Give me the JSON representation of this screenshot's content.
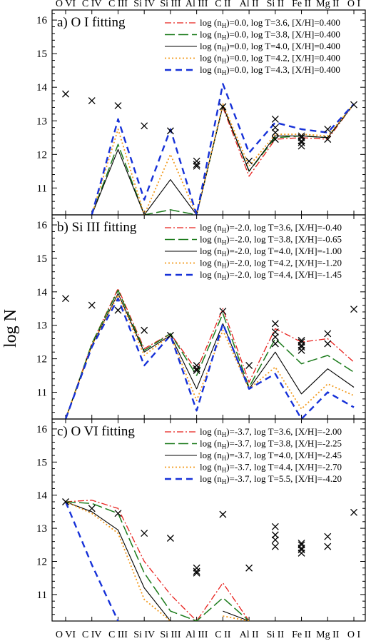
{
  "chart_data": {
    "type": "line",
    "ylabel": "log N",
    "categories": [
      "O VI",
      "C IV",
      "C III",
      "Si IV",
      "Si III",
      "Al III",
      "C II",
      "Al II",
      "Si II",
      "Fe II",
      "Mg II",
      "O I"
    ],
    "ylim": [
      10.2,
      16.3
    ],
    "yticks": [
      11,
      12,
      13,
      14,
      15,
      16
    ],
    "observed": [
      {
        "ion": "O VI",
        "values": [
          13.8
        ]
      },
      {
        "ion": "C IV",
        "values": [
          13.6
        ]
      },
      {
        "ion": "C III",
        "values": [
          13.45
        ]
      },
      {
        "ion": "Si IV",
        "values": [
          12.85
        ]
      },
      {
        "ion": "Si III",
        "values": [
          12.7
        ]
      },
      {
        "ion": "Al III",
        "values": [
          11.8,
          11.7,
          11.65
        ]
      },
      {
        "ion": "C II",
        "values": [
          13.42
        ]
      },
      {
        "ion": "Al II",
        "values": [
          11.8
        ]
      },
      {
        "ion": "Si II",
        "values": [
          13.05,
          12.8,
          12.65,
          12.45
        ]
      },
      {
        "ion": "Fe II",
        "values": [
          12.55,
          12.5,
          12.4,
          12.35,
          12.25
        ]
      },
      {
        "ion": "Mg II",
        "values": [
          12.75,
          12.45
        ]
      },
      {
        "ion": "O I",
        "values": [
          13.48
        ]
      }
    ],
    "panels": [
      {
        "title": "a) O I fitting",
        "series": [
          {
            "name": "log (n_H)=0.0,  log T=3.6,  [X/H]=0.400",
            "color": "#e8201c",
            "style": "dashdot",
            "values": [
              null,
              null,
              null,
              null,
              null,
              null,
              13.4,
              11.35,
              12.45,
              12.5,
              12.45,
              13.5
            ]
          },
          {
            "name": "log (n_H)=0.0,  log T=3.8,  [X/H]=0.400",
            "color": "#1a7a1a",
            "style": "longdash",
            "values": [
              null,
              10.2,
              12.3,
              10.2,
              10.35,
              10.2,
              13.45,
              11.5,
              12.5,
              12.55,
              12.5,
              13.5
            ]
          },
          {
            "name": "log (n_H)=0.0,  log T=4.0,  [X/H]=0.400",
            "color": "#000000",
            "style": "solid",
            "values": [
              null,
              10.2,
              12.15,
              10.2,
              11.25,
              10.2,
              13.45,
              11.5,
              12.55,
              12.55,
              12.5,
              13.5
            ]
          },
          {
            "name": "log (n_H)=0.0,  log T=4.2,  [X/H]=0.400",
            "color": "#f29a1e",
            "style": "dotted",
            "values": [
              null,
              10.2,
              12.75,
              10.2,
              12.0,
              10.2,
              13.5,
              11.65,
              12.6,
              12.6,
              12.55,
              13.5
            ]
          },
          {
            "name": "log (n_H)=0.0,  log T=4.3,  [X/H]=0.400",
            "color": "#1631d8",
            "style": "dash",
            "values": [
              null,
              10.2,
              13.05,
              10.65,
              12.75,
              10.2,
              14.1,
              12.05,
              12.95,
              12.75,
              12.65,
              13.5
            ]
          }
        ]
      },
      {
        "title": "b) Si III fitting",
        "series": [
          {
            "name": "log (n_H)=-2.0,  log T=3.6,  [X/H]=-0.40",
            "color": "#e8201c",
            "style": "dashdot",
            "values": [
              10.2,
              12.45,
              14.1,
              12.3,
              12.75,
              11.65,
              13.5,
              11.3,
              12.9,
              12.5,
              12.6,
              11.9
            ]
          },
          {
            "name": "log (n_H)=-2.0,  log T=3.8,  [X/H]=-0.65",
            "color": "#1a7a1a",
            "style": "longdash",
            "values": [
              10.2,
              12.45,
              14.05,
              12.25,
              12.75,
              11.5,
              13.35,
              11.15,
              12.6,
              11.85,
              12.1,
              11.6
            ]
          },
          {
            "name": "log (n_H)=-2.0,  log T=4.0,  [X/H]=-1.00",
            "color": "#000000",
            "style": "solid",
            "values": [
              10.2,
              12.4,
              13.95,
              12.2,
              12.7,
              11.1,
              13.05,
              11.1,
              12.2,
              10.95,
              11.7,
              11.15
            ]
          },
          {
            "name": "log (n_H)=-2.0,  log T=4.2,  [X/H]=-1.20",
            "color": "#f29a1e",
            "style": "dotted",
            "values": [
              10.2,
              12.4,
              13.9,
              12.1,
              12.7,
              10.75,
              12.85,
              11.1,
              11.75,
              10.5,
              11.25,
              10.9
            ]
          },
          {
            "name": "log (n_H)=-2.0,  log T=4.4,  [X/H]=-1.45",
            "color": "#1631d8",
            "style": "dash",
            "values": [
              10.2,
              12.35,
              13.8,
              11.8,
              12.7,
              10.45,
              13.05,
              11.1,
              11.55,
              10.2,
              11.0,
              10.55
            ]
          }
        ]
      },
      {
        "title": "c) O VI fitting",
        "series": [
          {
            "name": "log (n_H)=-3.7,  log T=3.6,  [X/H]=-2.00",
            "color": "#e8201c",
            "style": "dashdot",
            "values": [
              13.8,
              13.85,
              13.6,
              12.0,
              11.0,
              10.2,
              11.35,
              10.2,
              null,
              null,
              null,
              null
            ]
          },
          {
            "name": "log (n_H)=-3.7,  log T=3.8,  [X/H]=-2.25",
            "color": "#1a7a1a",
            "style": "longdash",
            "values": [
              13.8,
              13.75,
              13.45,
              11.65,
              10.5,
              10.2,
              10.9,
              10.2,
              null,
              null,
              null,
              null
            ]
          },
          {
            "name": "log (n_H)=-3.7,  log T=4.0,  [X/H]=-2.45",
            "color": "#000000",
            "style": "solid",
            "values": [
              13.8,
              13.5,
              12.95,
              11.2,
              10.2,
              null,
              10.5,
              10.2,
              null,
              null,
              null,
              null
            ]
          },
          {
            "name": "log (n_H)=-3.7,  log T=4.4,  [X/H]=-2.70",
            "color": "#f29a1e",
            "style": "dotted",
            "values": [
              13.8,
              13.45,
              12.85,
              10.85,
              10.2,
              null,
              10.35,
              10.2,
              null,
              null,
              null,
              null
            ]
          },
          {
            "name": "log (n_H)=-3.7,  log T=5.5,  [X/H]=-4.20",
            "color": "#1631d8",
            "style": "dash",
            "values": [
              13.8,
              11.9,
              10.2,
              null,
              null,
              null,
              null,
              null,
              null,
              null,
              null,
              null
            ]
          }
        ]
      }
    ],
    "legend_placement": "top-right",
    "grid": false
  }
}
